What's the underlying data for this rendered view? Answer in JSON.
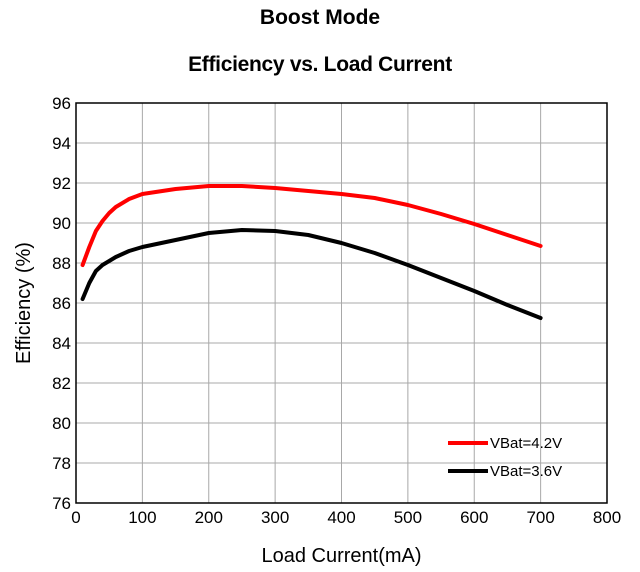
{
  "chart_data": {
    "type": "line",
    "mode_label": "Boost Mode",
    "title": "Efficiency vs. Load Current",
    "xlabel": "Load Current(mA)",
    "ylabel": "Efficiency  (%)",
    "xlim": [
      0,
      800
    ],
    "ylim": [
      76,
      96
    ],
    "xticks": [
      0,
      100,
      200,
      300,
      400,
      500,
      600,
      700,
      800
    ],
    "yticks": [
      76,
      78,
      80,
      82,
      84,
      86,
      88,
      90,
      92,
      94,
      96
    ],
    "grid": true,
    "legend_position": "bottom-right",
    "series": [
      {
        "name": "VBat=4.2V",
        "color": "#ff0000",
        "x": [
          10,
          20,
          30,
          40,
          50,
          60,
          80,
          100,
          150,
          200,
          250,
          300,
          350,
          400,
          450,
          500,
          550,
          600,
          650,
          700
        ],
        "y": [
          87.9,
          88.8,
          89.6,
          90.1,
          90.5,
          90.8,
          91.2,
          91.45,
          91.7,
          91.85,
          91.85,
          91.75,
          91.6,
          91.45,
          91.25,
          90.9,
          90.45,
          89.95,
          89.4,
          88.85
        ]
      },
      {
        "name": "VBat=3.6V",
        "color": "#000000",
        "x": [
          10,
          20,
          30,
          40,
          50,
          60,
          80,
          100,
          150,
          200,
          250,
          300,
          350,
          400,
          450,
          500,
          550,
          600,
          650,
          700
        ],
        "y": [
          86.2,
          87.0,
          87.6,
          87.9,
          88.1,
          88.3,
          88.6,
          88.8,
          89.15,
          89.5,
          89.65,
          89.6,
          89.4,
          89.0,
          88.5,
          87.9,
          87.25,
          86.6,
          85.9,
          85.25
        ]
      }
    ]
  }
}
